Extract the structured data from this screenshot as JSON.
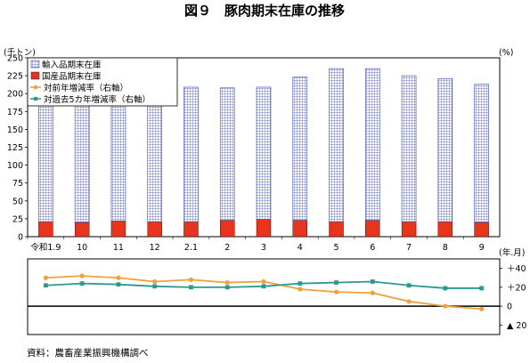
{
  "title": "図９　豚肉期末在庫の推移",
  "unit_left": "(千トン)",
  "unit_right": "(%)",
  "unit_x": "(年.月)",
  "source": "資料：農畜産業振興機構調べ",
  "colors": {
    "imported_fill": "#ffffff",
    "imported_grid": "#3f4fb0",
    "domestic": "#e8341c",
    "yoy": "#f0a040",
    "five_year": "#2a9a90"
  },
  "chart_data": [
    {
      "type": "bar",
      "stacked": true,
      "categories": [
        "令和1.9",
        "10",
        "11",
        "12",
        "2.1",
        "2",
        "3",
        "4",
        "5",
        "6",
        "7",
        "8",
        "9"
      ],
      "series": [
        {
          "name": "国産品期末在庫",
          "values": [
            21,
            20,
            22,
            21,
            21,
            23,
            24,
            23,
            21,
            23,
            21,
            21,
            20
          ]
        },
        {
          "name": "輸入品期末在庫",
          "values": [
            198,
            199,
            191,
            180,
            188,
            185,
            185,
            200,
            214,
            212,
            204,
            200,
            193
          ]
        }
      ],
      "ylim": [
        0,
        250
      ],
      "yticks": [
        0,
        25,
        50,
        75,
        100,
        125,
        150,
        175,
        200,
        225,
        250
      ],
      "grid": false,
      "legend": "top-left"
    },
    {
      "type": "line",
      "categories": [
        "令和1.9",
        "10",
        "11",
        "12",
        "2.1",
        "2",
        "3",
        "4",
        "5",
        "6",
        "7",
        "8",
        "9"
      ],
      "series": [
        {
          "name": "対前年増減率（右軸）",
          "values": [
            30,
            32,
            30,
            26,
            28,
            25,
            26,
            18,
            15,
            14,
            5,
            0,
            -3
          ]
        },
        {
          "name": "対過去5カ年増減率（右軸）",
          "values": [
            22,
            24,
            23,
            21,
            20,
            20,
            21,
            24,
            25,
            26,
            22,
            19,
            19
          ]
        }
      ],
      "ylim": [
        -30,
        50
      ],
      "ytick_labels": [
        {
          "value": 40,
          "label": "＋40"
        },
        {
          "value": 20,
          "label": "＋20"
        },
        {
          "value": 0,
          "label": "0"
        },
        {
          "value": -20,
          "label": "▲ 20"
        }
      ]
    }
  ]
}
